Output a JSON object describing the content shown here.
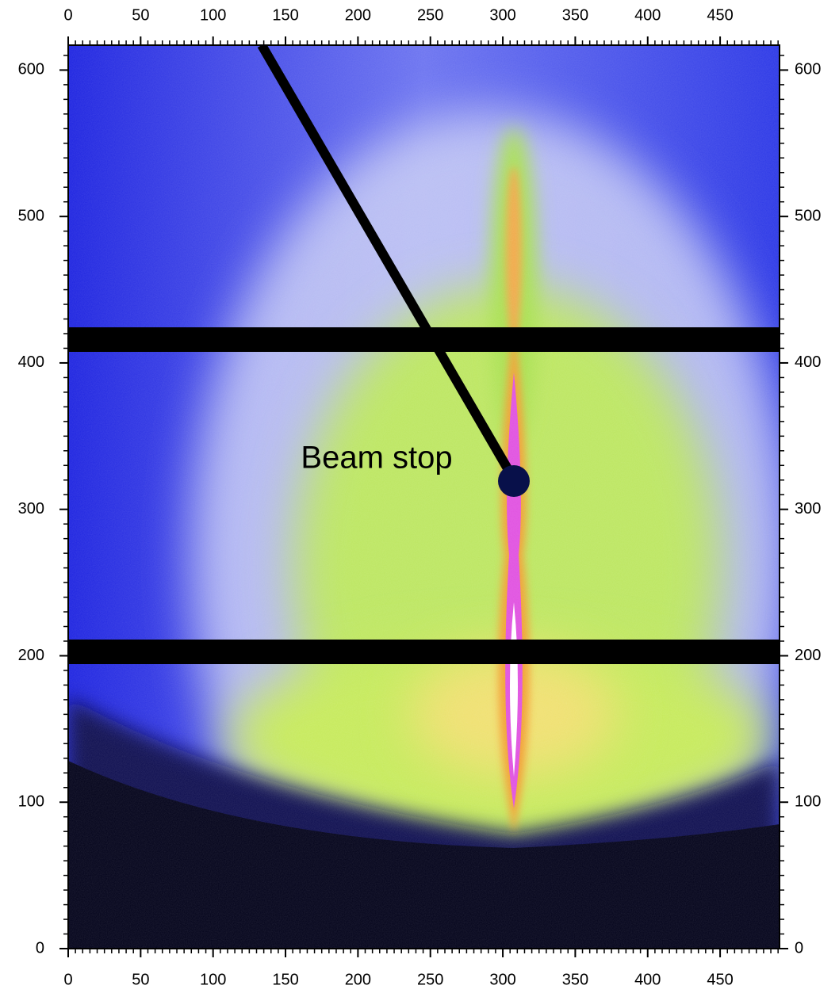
{
  "chart_data": {
    "type": "image",
    "annotation": "Beam stop",
    "xlim": [
      0,
      491
    ],
    "ylim": [
      0,
      617
    ],
    "xticks": [
      0,
      50,
      100,
      150,
      200,
      250,
      300,
      350,
      400,
      450
    ],
    "yticks": [
      0,
      100,
      200,
      300,
      400,
      500,
      600
    ]
  }
}
